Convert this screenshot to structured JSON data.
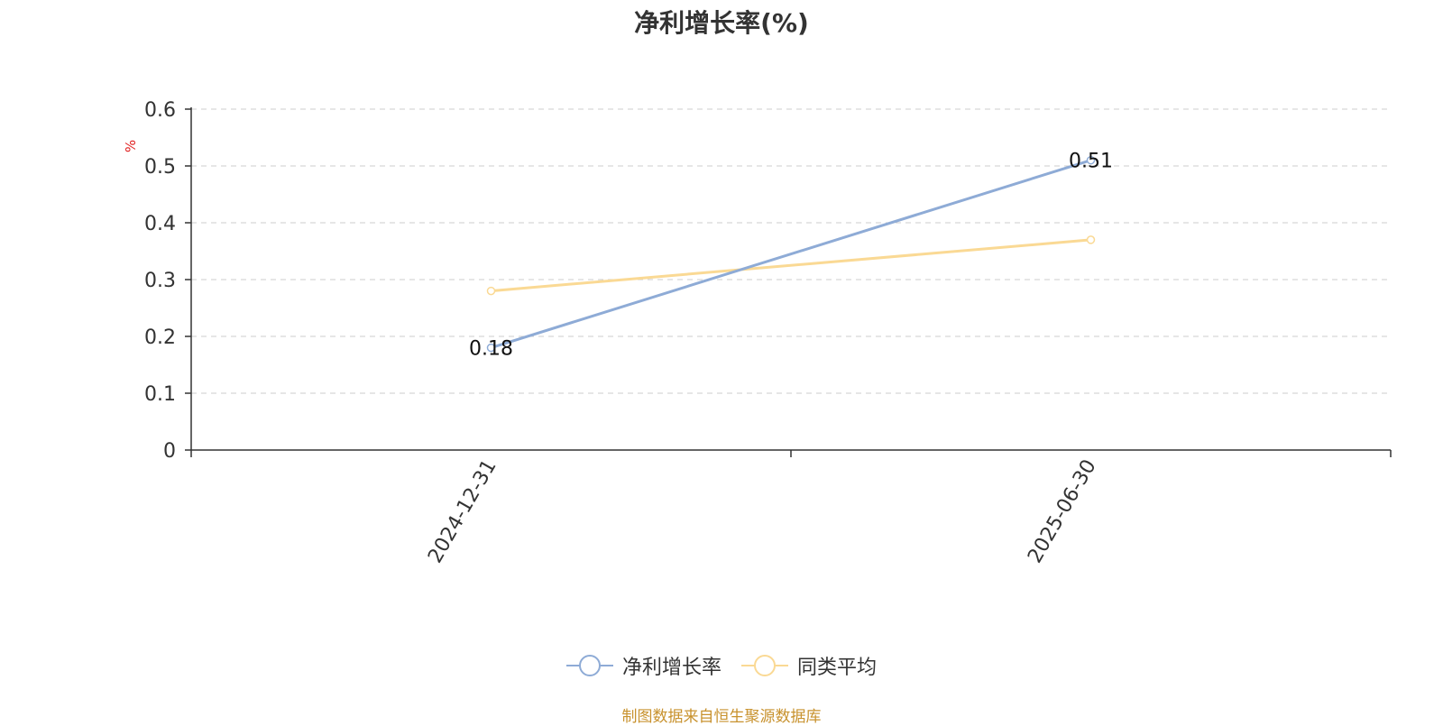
{
  "chart_data": {
    "type": "line",
    "title": "净利增长率(%)",
    "ylabel": "%",
    "xlabel": "",
    "categories": [
      "2024-12-31",
      "2025-06-30"
    ],
    "ylim": [
      0,
      0.6
    ],
    "yticks": [
      0,
      0.1,
      0.2,
      0.3,
      0.4,
      0.5,
      0.6
    ],
    "grid": true,
    "legend_position": "bottom-center",
    "series": [
      {
        "name": "净利增长率",
        "values": [
          0.18,
          0.51
        ],
        "color": "#8eabd6",
        "show_labels": true
      },
      {
        "name": "同类平均",
        "values": [
          0.28,
          0.37
        ],
        "color": "#fad994",
        "show_labels": false
      }
    ]
  },
  "source_note": "制图数据来自恒生聚源数据库"
}
